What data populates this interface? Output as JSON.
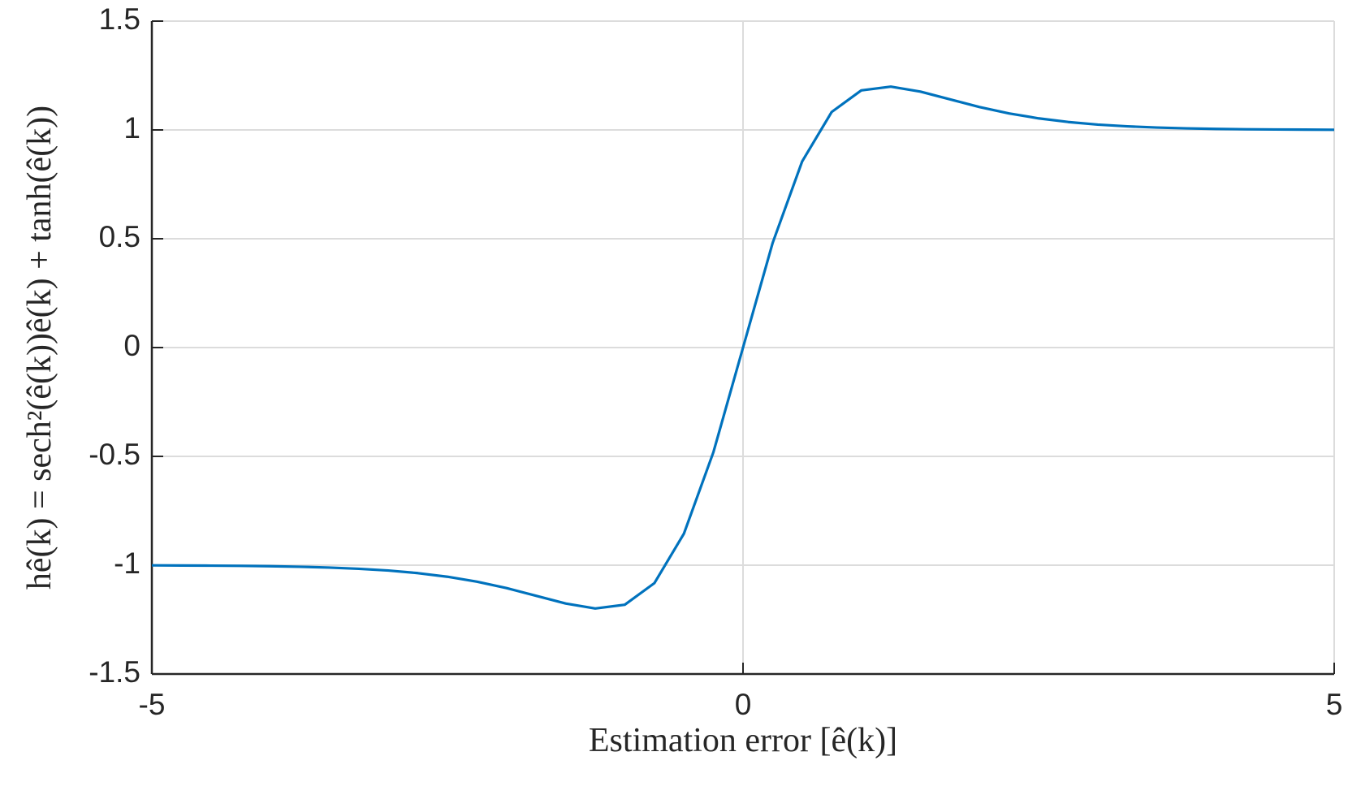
{
  "chart_data": {
    "type": "line",
    "xlabel": "Estimation error [ê(k)]",
    "ylabel": "hê(k) = sech²(ê(k))ê(k) + tanh(ê(k))",
    "x": [
      -5,
      -4.75,
      -4.5,
      -4.25,
      -4,
      -3.75,
      -3.5,
      -3.25,
      -3,
      -2.75,
      -2.5,
      -2.25,
      -2,
      -1.75,
      -1.5,
      -1.25,
      -1,
      -0.75,
      -0.5,
      -0.25,
      0,
      0.25,
      0.5,
      0.75,
      1,
      1.25,
      1.5,
      1.75,
      2,
      2.25,
      2.5,
      2.75,
      3,
      3.25,
      3.5,
      3.75,
      4,
      4.25,
      4.5,
      4.75,
      5
    ],
    "series": [
      {
        "name": "h",
        "color": "#0072bd",
        "values": [
          -1.0008,
          -1.0013,
          -1.002,
          -1.0031,
          -1.0047,
          -1.0072,
          -1.0109,
          -1.0165,
          -1.0246,
          -1.0365,
          -1.0531,
          -1.0758,
          -1.1053,
          -1.1406,
          -1.1762,
          -1.1988,
          -1.1816,
          -1.0826,
          -0.8553,
          -0.4799,
          0,
          0.4799,
          0.8553,
          1.0826,
          1.1816,
          1.1988,
          1.1762,
          1.1406,
          1.1053,
          1.0758,
          1.0531,
          1.0365,
          1.0246,
          1.0165,
          1.0109,
          1.0072,
          1.0047,
          1.0031,
          1.002,
          1.0013,
          1.0008
        ]
      }
    ],
    "xlim": [
      -5,
      5
    ],
    "xticks": [
      -5,
      0,
      5
    ],
    "ylim": [
      -1.5,
      1.5
    ],
    "yticks": [
      -1.5,
      -1,
      -0.5,
      0,
      0.5,
      1,
      1.5
    ],
    "grid": true
  }
}
